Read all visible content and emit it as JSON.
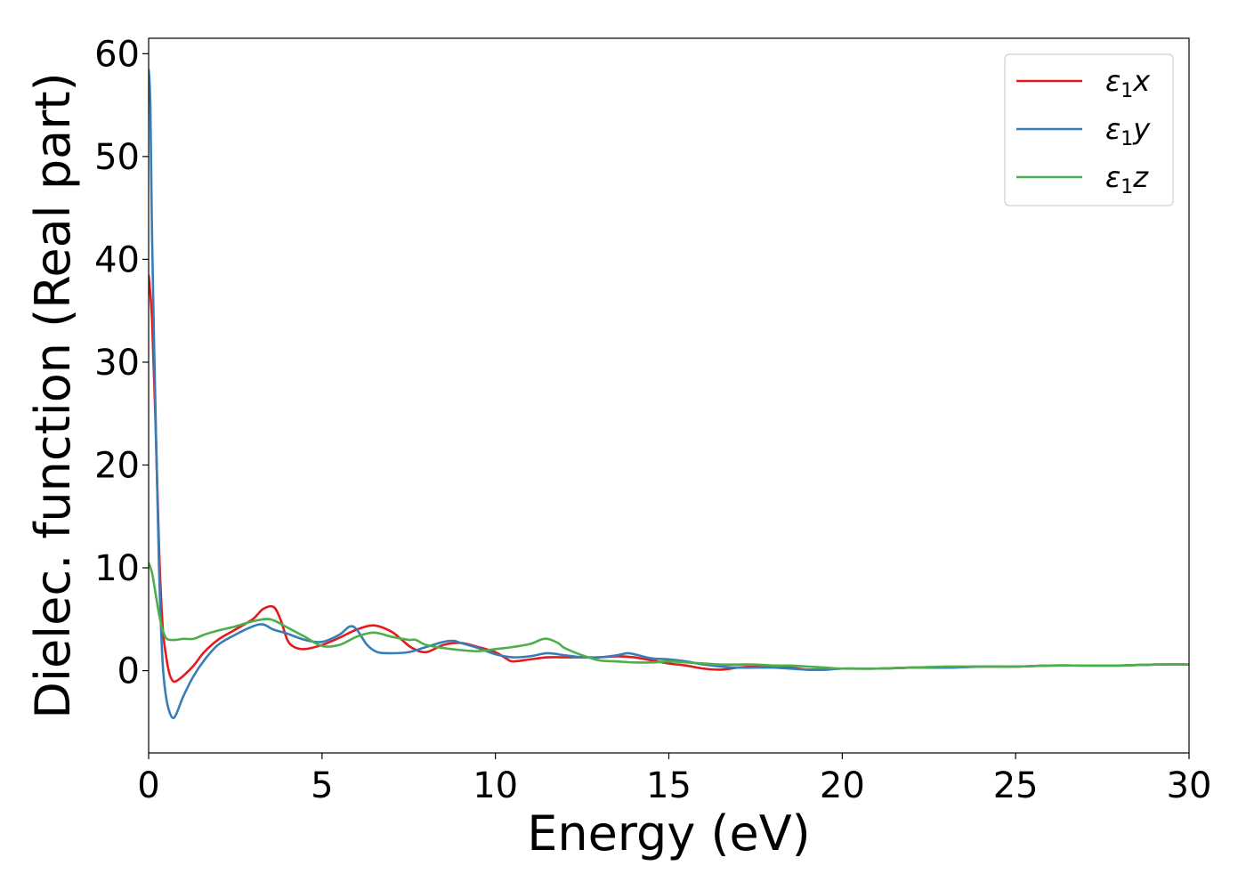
{
  "chart_data": {
    "type": "line",
    "title": "",
    "xlabel": "Energy (eV)",
    "ylabel": "Dielec. function (Real part)",
    "xlim": [
      0,
      30
    ],
    "ylim": [
      -8,
      61.5
    ],
    "xticks": [
      0,
      5,
      10,
      15,
      20,
      25,
      30
    ],
    "yticks": [
      0,
      10,
      20,
      30,
      40,
      50,
      60
    ],
    "grid": false,
    "legend_position": "top-right",
    "series": [
      {
        "name": "ε₁x",
        "label_base": "ε",
        "label_sub": "1",
        "label_var": "x",
        "color": "#e41a1c",
        "x": [
          0,
          0.1,
          0.2,
          0.3,
          0.4,
          0.5,
          0.6,
          0.7,
          0.8,
          1.0,
          1.3,
          1.6,
          2.0,
          2.5,
          3.0,
          3.3,
          3.6,
          3.8,
          4.0,
          4.2,
          4.5,
          5.0,
          5.5,
          6.0,
          6.5,
          7.0,
          7.3,
          7.6,
          8.0,
          8.5,
          9.0,
          9.5,
          10.0,
          10.3,
          10.5,
          11.0,
          11.5,
          12.0,
          12.5,
          13.0,
          13.5,
          14.0,
          14.5,
          15.0,
          15.5,
          16.0,
          16.5,
          17.0,
          17.5,
          18.0,
          18.5,
          19.0,
          19.5,
          20.0,
          21.0,
          22.0,
          23.0,
          24.0,
          25.0,
          26.0,
          27.0,
          28.0,
          29.0,
          30.0
        ],
        "values": [
          38.5,
          34.0,
          24.0,
          12.0,
          4.5,
          1.5,
          -0.3,
          -1.0,
          -1.0,
          -0.5,
          0.5,
          1.8,
          3.0,
          4.0,
          5.0,
          6.0,
          6.2,
          5.0,
          3.0,
          2.3,
          2.1,
          2.5,
          3.2,
          4.0,
          4.4,
          3.8,
          3.0,
          2.2,
          1.8,
          2.5,
          2.7,
          2.3,
          1.8,
          1.2,
          0.9,
          1.1,
          1.3,
          1.3,
          1.3,
          1.3,
          1.4,
          1.3,
          1.0,
          0.7,
          0.5,
          0.2,
          0.1,
          0.3,
          0.4,
          0.4,
          0.3,
          0.1,
          0.1,
          0.2,
          0.2,
          0.3,
          0.3,
          0.4,
          0.4,
          0.5,
          0.5,
          0.5,
          0.6,
          0.6
        ]
      },
      {
        "name": "ε₁y",
        "label_base": "ε",
        "label_sub": "1",
        "label_var": "y",
        "color": "#377eb8",
        "x": [
          0,
          0.05,
          0.1,
          0.2,
          0.3,
          0.4,
          0.5,
          0.6,
          0.7,
          0.8,
          1.0,
          1.3,
          1.6,
          2.0,
          2.5,
          3.0,
          3.3,
          3.6,
          4.0,
          4.5,
          5.0,
          5.5,
          5.8,
          6.0,
          6.3,
          6.6,
          7.0,
          7.5,
          8.0,
          8.5,
          8.8,
          9.0,
          9.5,
          10.0,
          10.5,
          11.0,
          11.5,
          12.0,
          12.5,
          13.0,
          13.5,
          13.8,
          14.0,
          14.5,
          15.0,
          15.5,
          16.0,
          16.5,
          17.0,
          17.5,
          18.0,
          18.5,
          19.0,
          19.5,
          20.0,
          21.0,
          22.0,
          23.0,
          24.0,
          25.0,
          26.0,
          27.0,
          28.0,
          29.0,
          30.0
        ],
        "values": [
          58.5,
          55.0,
          42.0,
          25.0,
          10.0,
          1.0,
          -2.5,
          -4.0,
          -4.6,
          -4.2,
          -2.5,
          -0.5,
          1.0,
          2.5,
          3.5,
          4.3,
          4.5,
          4.0,
          3.6,
          3.0,
          2.8,
          3.5,
          4.3,
          4.0,
          2.5,
          1.8,
          1.7,
          1.8,
          2.3,
          2.8,
          2.9,
          2.7,
          2.2,
          1.6,
          1.3,
          1.4,
          1.7,
          1.5,
          1.3,
          1.3,
          1.5,
          1.7,
          1.6,
          1.2,
          1.1,
          0.9,
          0.6,
          0.4,
          0.3,
          0.3,
          0.3,
          0.2,
          0.1,
          0.1,
          0.2,
          0.2,
          0.3,
          0.3,
          0.4,
          0.4,
          0.5,
          0.5,
          0.5,
          0.6,
          0.6
        ]
      },
      {
        "name": "ε₁z",
        "label_base": "ε",
        "label_sub": "1",
        "label_var": "z",
        "color": "#4daf4a",
        "x": [
          0,
          0.1,
          0.2,
          0.3,
          0.4,
          0.5,
          0.6,
          0.8,
          1.0,
          1.3,
          1.6,
          2.0,
          2.5,
          3.0,
          3.5,
          4.0,
          4.5,
          5.0,
          5.5,
          6.0,
          6.5,
          7.0,
          7.5,
          7.7,
          8.0,
          8.5,
          9.0,
          9.5,
          10.0,
          10.5,
          11.0,
          11.3,
          11.5,
          11.8,
          12.0,
          12.5,
          13.0,
          13.5,
          14.0,
          14.5,
          15.0,
          15.5,
          16.0,
          16.5,
          17.0,
          17.5,
          18.0,
          18.5,
          19.0,
          19.5,
          20.0,
          21.0,
          22.0,
          23.0,
          24.0,
          25.0,
          26.0,
          27.0,
          28.0,
          29.0,
          30.0
        ],
        "values": [
          10.5,
          9.5,
          7.5,
          5.5,
          4.0,
          3.2,
          3.0,
          3.0,
          3.1,
          3.1,
          3.5,
          3.9,
          4.3,
          4.8,
          5.0,
          4.2,
          3.3,
          2.4,
          2.5,
          3.3,
          3.7,
          3.3,
          3.0,
          3.0,
          2.5,
          2.2,
          2.0,
          1.9,
          2.1,
          2.3,
          2.6,
          3.0,
          3.1,
          2.7,
          2.2,
          1.5,
          1.0,
          0.9,
          0.8,
          0.8,
          0.9,
          0.8,
          0.7,
          0.6,
          0.6,
          0.6,
          0.5,
          0.5,
          0.4,
          0.3,
          0.2,
          0.2,
          0.3,
          0.4,
          0.4,
          0.4,
          0.5,
          0.5,
          0.5,
          0.6,
          0.6
        ]
      }
    ]
  }
}
